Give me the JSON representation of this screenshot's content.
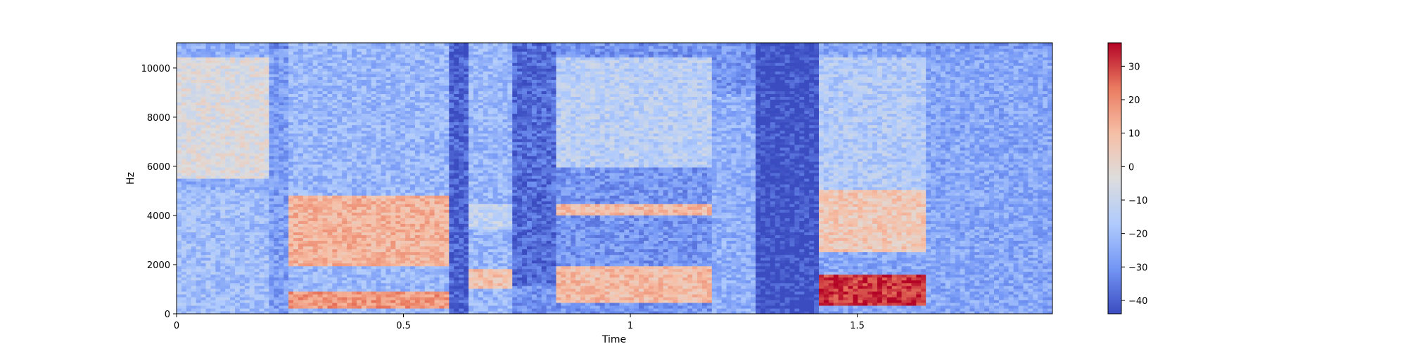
{
  "chart_data": {
    "type": "heatmap",
    "subtype": "spectrogram",
    "title": "",
    "xlabel": "Time",
    "ylabel": "Hz",
    "xlim": [
      0,
      1.93
    ],
    "ylim": [
      0,
      11025
    ],
    "x_ticks": [
      {
        "value": 0,
        "label": "0"
      },
      {
        "value": 0.5,
        "label": "0.5"
      },
      {
        "value": 1,
        "label": "1"
      },
      {
        "value": 1.5,
        "label": "1.5"
      }
    ],
    "y_ticks": [
      {
        "value": 0,
        "label": "0"
      },
      {
        "value": 2000,
        "label": "2000"
      },
      {
        "value": 4000,
        "label": "4000"
      },
      {
        "value": 6000,
        "label": "6000"
      },
      {
        "value": 8000,
        "label": "8000"
      },
      {
        "value": 10000,
        "label": "10000"
      }
    ],
    "colormap": "coolwarm",
    "colormap_stops": [
      "#3b4cc0",
      "#7396f5",
      "#b0cbfc",
      "#dddddd",
      "#f6bfa6",
      "#ea7b60",
      "#b40426"
    ],
    "colorbar": {
      "range": [
        -44,
        37
      ],
      "ticks": [
        {
          "value": 30,
          "label": "30"
        },
        {
          "value": 20,
          "label": "20"
        },
        {
          "value": 10,
          "label": "10"
        },
        {
          "value": 0,
          "label": "0"
        },
        {
          "value": -10,
          "label": "−10"
        },
        {
          "value": -20,
          "label": "−20"
        },
        {
          "value": -30,
          "label": "−30"
        },
        {
          "value": -40,
          "label": "−40"
        }
      ]
    },
    "grid": false,
    "segments": [
      {
        "t": [
          0.0,
          0.2
        ],
        "level": -24,
        "features": [
          {
            "f": [
              5500,
              10500
            ],
            "level": -4
          },
          {
            "f": [
              0,
              5000
            ],
            "level": -20
          }
        ]
      },
      {
        "t": [
          0.2,
          0.25
        ],
        "level": -32,
        "features": [
          {
            "f": [
              0,
              10800
            ],
            "level": -28
          }
        ]
      },
      {
        "t": [
          0.25,
          0.6
        ],
        "level": -22,
        "features": [
          {
            "f": [
              2000,
              4800
            ],
            "level": 12
          },
          {
            "f": [
              200,
              900
            ],
            "level": 18
          },
          {
            "f": [
              5000,
              10500
            ],
            "level": -24
          }
        ]
      },
      {
        "t": [
          0.6,
          0.64
        ],
        "level": -40,
        "features": []
      },
      {
        "t": [
          0.64,
          0.74
        ],
        "level": -22,
        "features": [
          {
            "f": [
              1000,
              1800
            ],
            "level": 8
          },
          {
            "f": [
              3500,
              4500
            ],
            "level": -12
          },
          {
            "f": [
              7000,
              10800
            ],
            "level": -22
          }
        ]
      },
      {
        "t": [
          0.74,
          0.84
        ],
        "level": -38,
        "features": [
          {
            "f": [
              0,
              1200
            ],
            "level": -30
          }
        ]
      },
      {
        "t": [
          0.84,
          1.18
        ],
        "level": -30,
        "features": [
          {
            "f": [
              500,
              1900
            ],
            "level": 10
          },
          {
            "f": [
              4000,
              4500
            ],
            "level": 10
          },
          {
            "f": [
              6000,
              10500
            ],
            "level": -14
          }
        ]
      },
      {
        "t": [
          1.18,
          1.28
        ],
        "level": -30,
        "features": [
          {
            "f": [
              0,
              9000
            ],
            "level": -24
          }
        ]
      },
      {
        "t": [
          1.28,
          1.41
        ],
        "level": -43,
        "features": []
      },
      {
        "t": [
          1.41,
          1.65
        ],
        "level": -26,
        "features": [
          {
            "f": [
              300,
              1600
            ],
            "level": 32
          },
          {
            "f": [
              2500,
              5000
            ],
            "level": 6
          },
          {
            "f": [
              5000,
              10500
            ],
            "level": -16
          }
        ]
      },
      {
        "t": [
          1.65,
          1.93
        ],
        "level": -30,
        "features": [
          {
            "f": [
              0,
              10800
            ],
            "level": -26
          }
        ]
      }
    ]
  }
}
